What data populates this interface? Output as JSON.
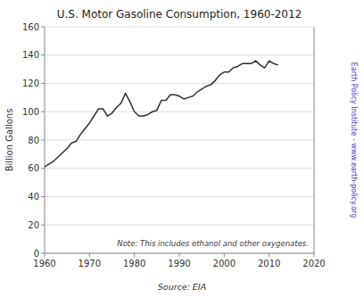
{
  "chart_data": {
    "type": "line",
    "title": "U.S. Motor Gasoline Consumption, 1960-2012",
    "ylabel": "Billion Gallons",
    "annotations": [
      "Note: This includes ethanol and other oxygenates.",
      "Source: EIA",
      "Earth Policy Institute - www.earth-policy.org"
    ],
    "x": [
      1960,
      1961,
      1962,
      1963,
      1964,
      1965,
      1966,
      1967,
      1968,
      1969,
      1970,
      1971,
      1972,
      1973,
      1974,
      1975,
      1976,
      1977,
      1978,
      1979,
      1980,
      1981,
      1982,
      1983,
      1984,
      1985,
      1986,
      1987,
      1988,
      1989,
      1990,
      1991,
      1992,
      1993,
      1994,
      1995,
      1996,
      1997,
      1998,
      1999,
      2000,
      2001,
      2002,
      2003,
      2004,
      2005,
      2006,
      2007,
      2008,
      2009,
      2010,
      2011,
      2012
    ],
    "values": [
      61,
      63,
      65,
      68,
      71,
      74,
      78,
      79,
      84,
      88,
      92,
      97,
      102,
      102,
      97,
      99,
      103,
      106,
      113,
      107,
      100,
      97,
      97,
      98,
      100,
      101,
      108,
      108,
      112,
      112,
      111,
      109,
      110,
      111,
      114,
      116,
      118,
      119,
      122,
      126,
      128,
      128,
      131,
      132,
      134,
      134,
      134,
      136,
      133,
      131,
      136,
      134,
      133
    ],
    "color": "#303030",
    "xlim": [
      1960,
      2020
    ],
    "ylim": [
      0,
      160
    ],
    "xticks": [
      1960,
      1970,
      1980,
      1990,
      2000,
      2010,
      2020
    ],
    "yticks": [
      0,
      20,
      40,
      60,
      80,
      100,
      120,
      140,
      160
    ],
    "grid": true
  }
}
